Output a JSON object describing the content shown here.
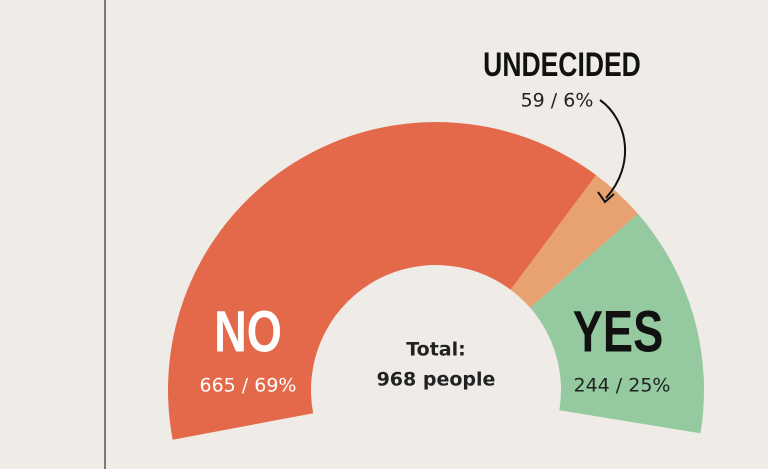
{
  "chart_data": {
    "type": "pie",
    "categories": [
      "NO",
      "UNDECIDED",
      "YES"
    ],
    "values": [
      665,
      59,
      244
    ],
    "value_labels": [
      "665 / 69%",
      "59 / 6%",
      "244 / 25%"
    ],
    "colors": [
      "#e4694a",
      "#e8a272",
      "#95c9a0"
    ],
    "total_caption": "Total:",
    "total_label": "968 people"
  }
}
